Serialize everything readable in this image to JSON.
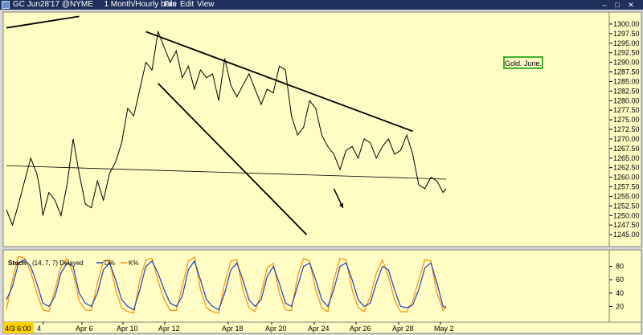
{
  "window": {
    "title": "GC Jun28'17 @NYME",
    "timeframe": "1 Month/Hourly bars",
    "menu": [
      "File",
      "Edit",
      "View"
    ],
    "controls": [
      "minimize-icon",
      "maximize-icon",
      "close-icon"
    ]
  },
  "colors": {
    "panel_bg": "#fffdc4",
    "price_line": "#000000",
    "d_line": "#1f3fbf",
    "k_line": "#ff8c00",
    "label_border": "#009900"
  },
  "chart_data": [
    {
      "type": "line",
      "title": "",
      "annotation": "Gold. June.",
      "x_ticks": [
        "4/3 6:00",
        "4",
        "Apr 6",
        "Apr 10",
        "Apr 12",
        "Apr 18",
        "Apr 20",
        "Apr 24",
        "Apr 26",
        "Apr 28",
        "May 2"
      ],
      "y_ticks": [
        1245.0,
        1247.5,
        1250.0,
        1252.5,
        1255.0,
        1257.5,
        1260.0,
        1262.5,
        1265.0,
        1267.5,
        1270.0,
        1272.5,
        1275.0,
        1277.5,
        1280.0,
        1282.5,
        1285.0,
        1287.5,
        1290.0,
        1292.5,
        1295.0,
        1297.5,
        1300.0
      ],
      "ylim": [
        1242.5,
        1302.5
      ],
      "series": [
        {
          "x": [
            0,
            2,
            4,
            6,
            8,
            10,
            11,
            12,
            14,
            16,
            18,
            20,
            22,
            24,
            26,
            28,
            30,
            32,
            34,
            36,
            38,
            40,
            42,
            44,
            46,
            48,
            50,
            52,
            54,
            56,
            58,
            60,
            62,
            64,
            66,
            68,
            70,
            72,
            74,
            76,
            78,
            80,
            82,
            84,
            86,
            88,
            90,
            92,
            94,
            96,
            98,
            100,
            102,
            104,
            106,
            108,
            110,
            112,
            114,
            116,
            118,
            120,
            122,
            124,
            126,
            128,
            130,
            132,
            134,
            136,
            138,
            140,
            142,
            144,
            145
          ],
          "values": [
            1251.5,
            1247.5,
            1253,
            1259,
            1265,
            1261,
            1257,
            1250,
            1256,
            1254,
            1250,
            1258,
            1270,
            1261,
            1253,
            1252,
            1259,
            1254,
            1261,
            1264,
            1269,
            1278,
            1276,
            1283,
            1290,
            1288,
            1298,
            1294,
            1290,
            1293,
            1286,
            1289,
            1283,
            1288,
            1286,
            1287,
            1280,
            1291,
            1284,
            1281,
            1284,
            1287,
            1283,
            1279,
            1283,
            1282,
            1289,
            1288,
            1276,
            1271,
            1273,
            1280,
            1278,
            1271,
            1268,
            1266,
            1262,
            1267,
            1268,
            1265,
            1270,
            1269,
            1265,
            1268,
            1270,
            1266,
            1267,
            1271,
            1266,
            1258,
            1257,
            1260,
            1259,
            1256,
            1257
          ]
        }
      ],
      "trendlines": [
        {
          "x": [
            0,
            24
          ],
          "y": [
            1299,
            1302
          ]
        },
        {
          "x": [
            46,
            134
          ],
          "y": [
            1298,
            1272
          ]
        },
        {
          "x": [
            50,
            99
          ],
          "y": [
            1284.5,
            1245
          ]
        },
        {
          "x": [
            0,
            145
          ],
          "y": [
            1263,
            1259.5
          ]
        }
      ],
      "arrow": {
        "x": [
          108,
          111
        ],
        "y": [
          1257,
          1252
        ]
      }
    },
    {
      "type": "line",
      "title": "Stoch",
      "params": "(14, 7, 7) Delayed",
      "legend": [
        "D%",
        "K%"
      ],
      "legend_placement": "top-left",
      "y_ticks": [
        20,
        40,
        60,
        80
      ],
      "ylim": [
        0,
        100
      ],
      "series": [
        {
          "name": "D%",
          "x": [
            0,
            2,
            4,
            6,
            8,
            10,
            12,
            14,
            16,
            18,
            20,
            22,
            24,
            26,
            28,
            30,
            32,
            34,
            36,
            38,
            40,
            42,
            44,
            46,
            48,
            50,
            52,
            54,
            56,
            58,
            60,
            62,
            64,
            66,
            68,
            70,
            72,
            74,
            76,
            78,
            80,
            82,
            84,
            86,
            88,
            90,
            92,
            94,
            96,
            98,
            100,
            102,
            104,
            106,
            108,
            110,
            112,
            114,
            116,
            118,
            120,
            122,
            124,
            126,
            128,
            130,
            132,
            134,
            136,
            138,
            140,
            142,
            144,
            145
          ],
          "values": [
            30,
            50,
            85,
            90,
            80,
            55,
            25,
            20,
            35,
            70,
            85,
            80,
            40,
            25,
            20,
            40,
            75,
            85,
            60,
            30,
            20,
            15,
            45,
            80,
            88,
            70,
            45,
            25,
            20,
            35,
            75,
            88,
            60,
            30,
            20,
            15,
            40,
            75,
            85,
            60,
            30,
            20,
            30,
            65,
            80,
            55,
            25,
            20,
            50,
            80,
            85,
            60,
            30,
            20,
            45,
            80,
            85,
            60,
            30,
            20,
            25,
            55,
            80,
            75,
            45,
            20,
            18,
            22,
            45,
            78,
            85,
            55,
            20,
            18
          ]
        },
        {
          "name": "K%",
          "x": [
            0,
            2,
            4,
            6,
            8,
            10,
            12,
            14,
            16,
            18,
            20,
            22,
            24,
            26,
            28,
            30,
            32,
            34,
            36,
            38,
            40,
            42,
            44,
            46,
            48,
            50,
            52,
            54,
            56,
            58,
            60,
            62,
            64,
            66,
            68,
            70,
            72,
            74,
            76,
            78,
            80,
            82,
            84,
            86,
            88,
            90,
            92,
            94,
            96,
            98,
            100,
            102,
            104,
            106,
            108,
            110,
            112,
            114,
            116,
            118,
            120,
            122,
            124,
            126,
            128,
            130,
            132,
            134,
            136,
            138,
            140,
            142,
            144,
            145
          ],
          "values": [
            15,
            60,
            95,
            92,
            72,
            40,
            15,
            12,
            45,
            80,
            92,
            70,
            28,
            15,
            14,
            55,
            88,
            90,
            45,
            18,
            12,
            10,
            60,
            90,
            92,
            58,
            30,
            14,
            14,
            50,
            88,
            94,
            45,
            18,
            12,
            10,
            55,
            88,
            90,
            45,
            18,
            12,
            40,
            78,
            85,
            40,
            15,
            14,
            65,
            92,
            88,
            45,
            18,
            12,
            60,
            92,
            90,
            45,
            18,
            12,
            35,
            70,
            90,
            65,
            30,
            12,
            12,
            28,
            60,
            90,
            88,
            40,
            14,
            22
          ]
        }
      ]
    }
  ]
}
